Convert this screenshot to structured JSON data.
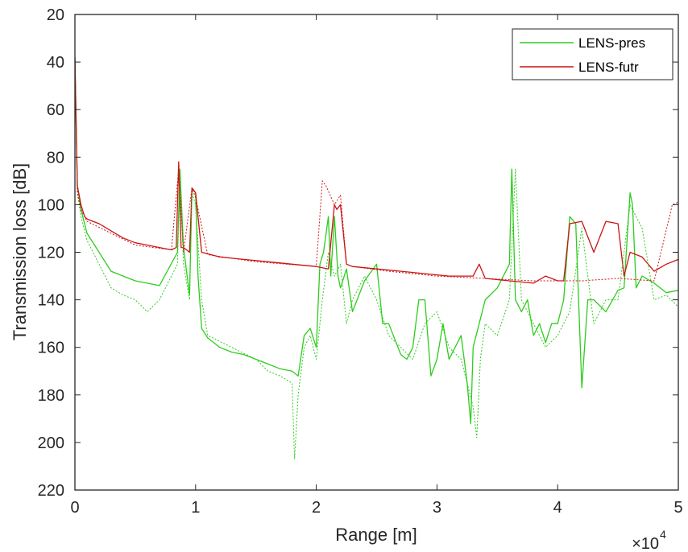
{
  "colors": {
    "axis": "#262626",
    "LENS-pres": "#2ecc1e",
    "LENS-futr": "#cc1414",
    "background": "#ffffff"
  },
  "chart_data": {
    "type": "line",
    "xlabel": "Range [m]",
    "ylabel": "Transmission loss [dB]",
    "x_exponent_base": "×10",
    "x_exponent_power": "4",
    "xlim": [
      0,
      5
    ],
    "ylim": [
      20,
      220
    ],
    "y_reversed": true,
    "x_ticks": [
      "0",
      "1",
      "2",
      "3",
      "4",
      "5"
    ],
    "y_ticks": [
      "20",
      "40",
      "60",
      "80",
      "100",
      "120",
      "140",
      "160",
      "180",
      "200",
      "220"
    ],
    "grid": false,
    "legend": {
      "position": "top-right",
      "entries": [
        "LENS-pres",
        "LENS-futr"
      ]
    },
    "series": [
      {
        "name": "LENS-pres",
        "style": "solid",
        "x": [
          0.0,
          0.02,
          0.05,
          0.1,
          0.2,
          0.3,
          0.4,
          0.5,
          0.7,
          0.85,
          0.87,
          0.9,
          0.95,
          0.97,
          1.0,
          1.02,
          1.05,
          1.1,
          1.2,
          1.3,
          1.4,
          1.5,
          1.6,
          1.7,
          1.8,
          1.85,
          1.9,
          1.95,
          2.0,
          2.03,
          2.06,
          2.1,
          2.12,
          2.15,
          2.18,
          2.2,
          2.25,
          2.3,
          2.4,
          2.5,
          2.55,
          2.6,
          2.7,
          2.75,
          2.8,
          2.85,
          2.9,
          2.95,
          3.0,
          3.05,
          3.1,
          3.15,
          3.2,
          3.25,
          3.28,
          3.3,
          3.35,
          3.4,
          3.5,
          3.55,
          3.6,
          3.62,
          3.65,
          3.7,
          3.75,
          3.8,
          3.85,
          3.9,
          3.95,
          4.0,
          4.05,
          4.1,
          4.15,
          4.2,
          4.25,
          4.3,
          4.4,
          4.5,
          4.55,
          4.6,
          4.62,
          4.65,
          4.7,
          4.8,
          4.9,
          5.0
        ],
        "y": [
          38,
          92,
          102,
          112,
          120,
          128,
          130,
          132,
          134,
          120,
          85,
          118,
          138,
          93,
          95,
          130,
          152,
          156,
          160,
          162,
          163,
          165,
          167,
          169,
          170,
          172,
          155,
          152,
          160,
          125,
          120,
          105,
          130,
          105,
          130,
          135,
          127,
          145,
          132,
          125,
          150,
          150,
          163,
          165,
          160,
          140,
          140,
          172,
          165,
          150,
          165,
          160,
          155,
          175,
          192,
          160,
          150,
          140,
          135,
          130,
          125,
          85,
          140,
          145,
          140,
          155,
          150,
          158,
          150,
          150,
          140,
          105,
          108,
          177,
          140,
          140,
          145,
          136,
          135,
          95,
          100,
          135,
          130,
          133,
          137,
          136
        ]
      },
      {
        "name": "LENS-futr",
        "style": "solid",
        "x": [
          0.0,
          0.02,
          0.05,
          0.08,
          0.1,
          0.15,
          0.2,
          0.3,
          0.4,
          0.5,
          0.6,
          0.7,
          0.8,
          0.84,
          0.86,
          0.88,
          0.9,
          0.95,
          0.97,
          1.0,
          1.05,
          1.2,
          1.4,
          1.6,
          1.8,
          2.0,
          2.1,
          2.15,
          2.17,
          2.2,
          2.25,
          2.3,
          2.5,
          2.7,
          2.9,
          3.1,
          3.3,
          3.35,
          3.4,
          3.6,
          3.8,
          3.9,
          4.0,
          4.05,
          4.1,
          4.2,
          4.3,
          4.4,
          4.5,
          4.55,
          4.6,
          4.7,
          4.8,
          4.9,
          5.0
        ],
        "y": [
          38,
          92,
          100,
          105,
          106,
          107,
          108,
          111,
          114,
          116,
          117,
          118,
          119,
          118,
          82,
          118,
          118,
          120,
          93,
          95,
          120,
          122,
          123,
          124,
          125,
          126,
          127,
          100,
          102,
          100,
          125,
          126,
          127,
          128,
          129,
          130,
          130,
          125,
          131,
          132,
          133,
          130,
          132,
          132,
          108,
          107,
          120,
          107,
          108,
          130,
          120,
          122,
          128,
          125,
          123
        ]
      },
      {
        "name": "",
        "style": "dotted",
        "x": [
          0.0,
          0.02,
          0.05,
          0.1,
          0.2,
          0.3,
          0.4,
          0.5,
          0.6,
          0.7,
          0.85,
          0.87,
          0.9,
          0.95,
          0.97,
          1.0,
          1.05,
          1.1,
          1.3,
          1.5,
          1.6,
          1.7,
          1.8,
          1.82,
          1.85,
          1.9,
          1.95,
          2.0,
          2.05,
          2.1,
          2.15,
          2.2,
          2.25,
          2.3,
          2.4,
          2.5,
          2.6,
          2.7,
          2.8,
          2.9,
          3.0,
          3.1,
          3.2,
          3.3,
          3.33,
          3.36,
          3.4,
          3.5,
          3.6,
          3.65,
          3.7,
          3.8,
          3.9,
          4.0,
          4.1,
          4.2,
          4.3,
          4.4,
          4.5,
          4.6,
          4.7,
          4.8,
          4.9,
          5.0
        ],
        "y": [
          40,
          95,
          105,
          115,
          125,
          135,
          138,
          140,
          145,
          140,
          125,
          88,
          125,
          140,
          95,
          100,
          140,
          155,
          160,
          165,
          170,
          172,
          175,
          207,
          180,
          160,
          155,
          165,
          140,
          120,
          130,
          125,
          150,
          140,
          130,
          140,
          155,
          160,
          165,
          150,
          145,
          160,
          165,
          185,
          198,
          165,
          150,
          155,
          140,
          85,
          140,
          150,
          160,
          155,
          145,
          110,
          150,
          140,
          140,
          100,
          110,
          140,
          138,
          143
        ]
      },
      {
        "name": "",
        "style": "dotted",
        "x": [
          0.0,
          0.02,
          0.05,
          0.1,
          0.3,
          0.5,
          0.8,
          0.86,
          0.9,
          0.97,
          1.0,
          1.1,
          1.5,
          2.0,
          2.05,
          2.08,
          2.15,
          2.2,
          2.25,
          2.3,
          2.6,
          3.0,
          3.4,
          3.8,
          4.0,
          4.2,
          4.5,
          4.8,
          4.95,
          5.0
        ],
        "y": [
          40,
          95,
          102,
          107,
          112,
          117,
          119,
          85,
          120,
          93,
          97,
          121,
          124,
          126,
          90,
          92,
          100,
          96,
          125,
          126,
          128,
          130,
          131,
          132,
          132,
          132,
          131,
          132,
          100,
          99
        ]
      }
    ]
  }
}
